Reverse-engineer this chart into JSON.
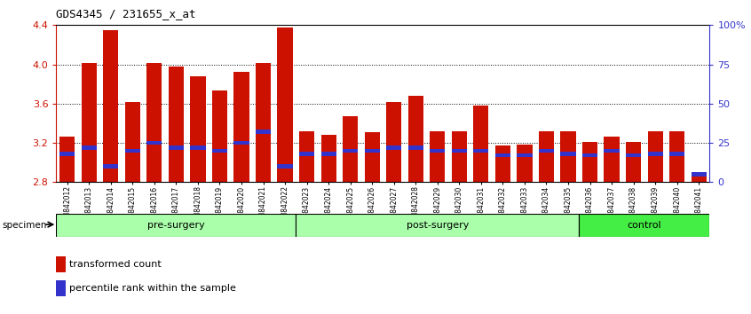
{
  "title": "GDS4345 / 231655_x_at",
  "categories": [
    "GSM842012",
    "GSM842013",
    "GSM842014",
    "GSM842015",
    "GSM842016",
    "GSM842017",
    "GSM842018",
    "GSM842019",
    "GSM842020",
    "GSM842021",
    "GSM842022",
    "GSM842023",
    "GSM842024",
    "GSM842025",
    "GSM842026",
    "GSM842027",
    "GSM842028",
    "GSM842029",
    "GSM842030",
    "GSM842031",
    "GSM842032",
    "GSM842033",
    "GSM842034",
    "GSM842035",
    "GSM842036",
    "GSM842037",
    "GSM842038",
    "GSM842039",
    "GSM842040",
    "GSM842041"
  ],
  "red_values": [
    3.26,
    4.01,
    4.35,
    3.62,
    4.01,
    3.98,
    3.88,
    3.73,
    3.92,
    4.01,
    4.38,
    3.32,
    3.28,
    3.47,
    3.31,
    3.62,
    3.68,
    3.32,
    3.32,
    3.58,
    3.17,
    3.18,
    3.32,
    3.32,
    3.21,
    3.26,
    3.21,
    3.32,
    3.32,
    2.9
  ],
  "blue_percentiles": [
    18,
    22,
    10,
    20,
    25,
    22,
    22,
    20,
    25,
    32,
    10,
    18,
    18,
    20,
    20,
    22,
    22,
    20,
    20,
    20,
    17,
    17,
    20,
    18,
    17,
    20,
    17,
    18,
    18,
    5
  ],
  "group_boundaries": [
    {
      "label": "pre-surgery",
      "start": 0,
      "end": 11,
      "color": "#AAFFAA"
    },
    {
      "label": "post-surgery",
      "start": 11,
      "end": 24,
      "color": "#AAFFAA"
    },
    {
      "label": "control",
      "start": 24,
      "end": 30,
      "color": "#44EE44"
    }
  ],
  "ylim": [
    2.8,
    4.4
  ],
  "y_ticks_left": [
    2.8,
    3.2,
    3.6,
    4.0,
    4.4
  ],
  "y_ticks_right_pct": [
    0,
    25,
    50,
    75,
    100
  ],
  "y_ticks_right_labels": [
    "0",
    "25",
    "50",
    "75",
    "100%"
  ],
  "red_color": "#CC1100",
  "blue_color": "#3333CC",
  "bar_width": 0.7,
  "base": 2.8,
  "blue_bar_height": 0.04,
  "legend_red": "transformed count",
  "legend_blue": "percentile rank within the sample",
  "specimen_label": "specimen"
}
